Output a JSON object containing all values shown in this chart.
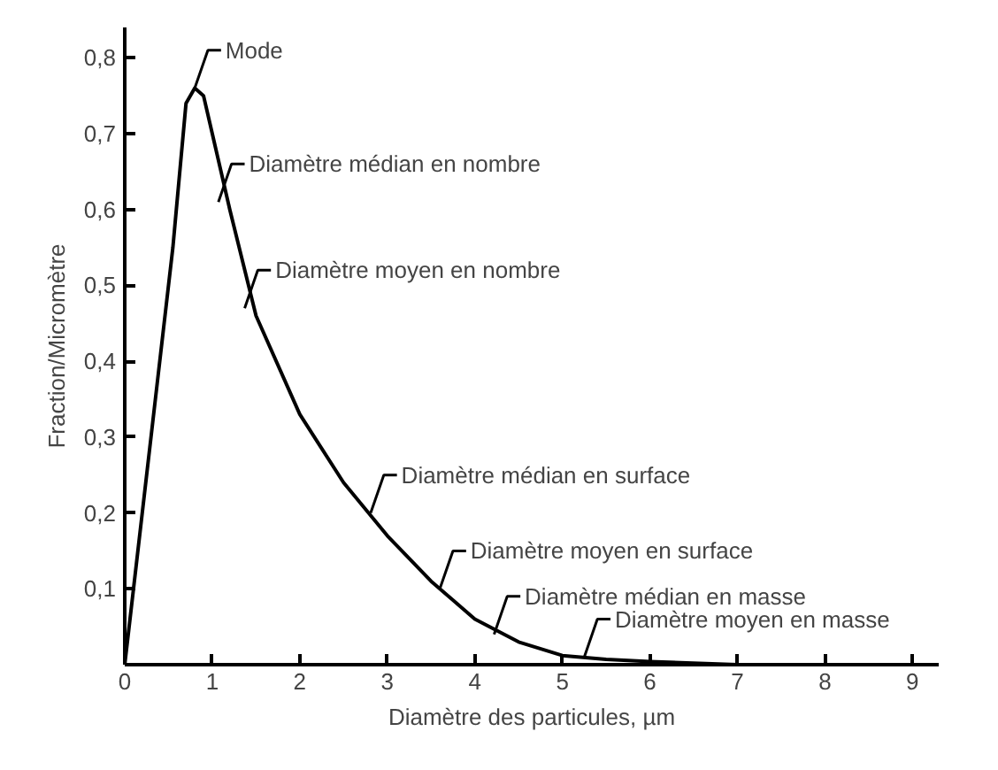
{
  "chart_data": {
    "type": "line",
    "xlabel": "Diamètre des particules, µm",
    "ylabel": "Fraction/Micromètre",
    "x": [
      0,
      0.3,
      0.55,
      0.7,
      0.8,
      0.9,
      1.0,
      1.2,
      1.5,
      2.0,
      2.5,
      3.0,
      3.5,
      4.0,
      4.5,
      5.0,
      5.5,
      6.0,
      7.0
    ],
    "series": [
      {
        "color": "#000000",
        "values": [
          0,
          0.3,
          0.55,
          0.74,
          0.76,
          0.75,
          0.7,
          0.6,
          0.46,
          0.33,
          0.24,
          0.17,
          0.11,
          0.06,
          0.03,
          0.012,
          0.007,
          0.004,
          0
        ]
      }
    ],
    "xlim": [
      0,
      9.3
    ],
    "ylim": [
      0,
      0.84
    ],
    "xticks": [
      0,
      1,
      2,
      3,
      4,
      5,
      6,
      7,
      8,
      9
    ],
    "yticks": [
      {
        "value": 0.1,
        "label": "0,1"
      },
      {
        "value": 0.2,
        "label": "0,2"
      },
      {
        "value": 0.3,
        "label": "0,3"
      },
      {
        "value": 0.4,
        "label": "0,4"
      },
      {
        "value": 0.5,
        "label": "0,5"
      },
      {
        "value": 0.6,
        "label": "0,6"
      },
      {
        "value": 0.7,
        "label": "0,7"
      },
      {
        "value": 0.8,
        "label": "0,8"
      }
    ],
    "grid": false,
    "marker": "none",
    "line_style": "solid",
    "annotations": [
      {
        "text": "Mode",
        "x": 0.8,
        "y": 0.76
      },
      {
        "text": "Diamètre médian en nombre",
        "x": 1.07,
        "y": 0.61
      },
      {
        "text": "Diamètre moyen en nombre",
        "x": 1.37,
        "y": 0.47
      },
      {
        "text": "Diamètre médian en surface",
        "x": 2.81,
        "y": 0.2
      },
      {
        "text": "Diamètre moyen en surface",
        "x": 3.6,
        "y": 0.1
      },
      {
        "text": "Diamètre médian en masse",
        "x": 4.22,
        "y": 0.04
      },
      {
        "text": "Diamètre moyen en masse",
        "x": 5.25,
        "y": 0.01
      }
    ]
  }
}
